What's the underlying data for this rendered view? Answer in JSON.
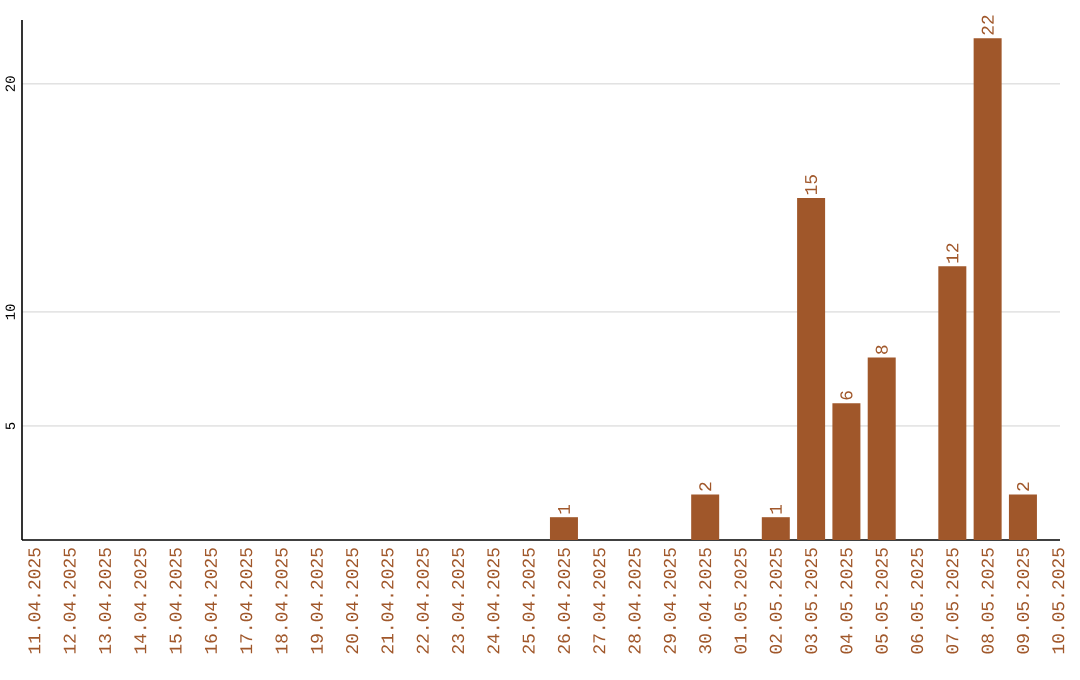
{
  "chart_data": {
    "type": "bar",
    "categories": [
      "11.04.2025",
      "12.04.2025",
      "13.04.2025",
      "14.04.2025",
      "15.04.2025",
      "16.04.2025",
      "17.04.2025",
      "18.04.2025",
      "19.04.2025",
      "20.04.2025",
      "21.04.2025",
      "22.04.2025",
      "23.04.2025",
      "24.04.2025",
      "25.04.2025",
      "26.04.2025",
      "27.04.2025",
      "28.04.2025",
      "29.04.2025",
      "30.04.2025",
      "01.05.2025",
      "02.05.2025",
      "03.05.2025",
      "04.05.2025",
      "05.05.2025",
      "06.05.2025",
      "07.05.2025",
      "08.05.2025",
      "09.05.2025",
      "10.05.2025"
    ],
    "values": [
      null,
      null,
      null,
      null,
      null,
      null,
      null,
      null,
      null,
      null,
      null,
      null,
      null,
      null,
      null,
      1,
      null,
      null,
      null,
      2,
      null,
      1,
      15,
      6,
      8,
      null,
      12,
      22,
      2,
      null
    ],
    "color": "#a0572a",
    "ylim": [
      0,
      22.8
    ],
    "yticks": [
      5,
      10,
      20
    ],
    "grid": "y",
    "data_labels": true
  }
}
